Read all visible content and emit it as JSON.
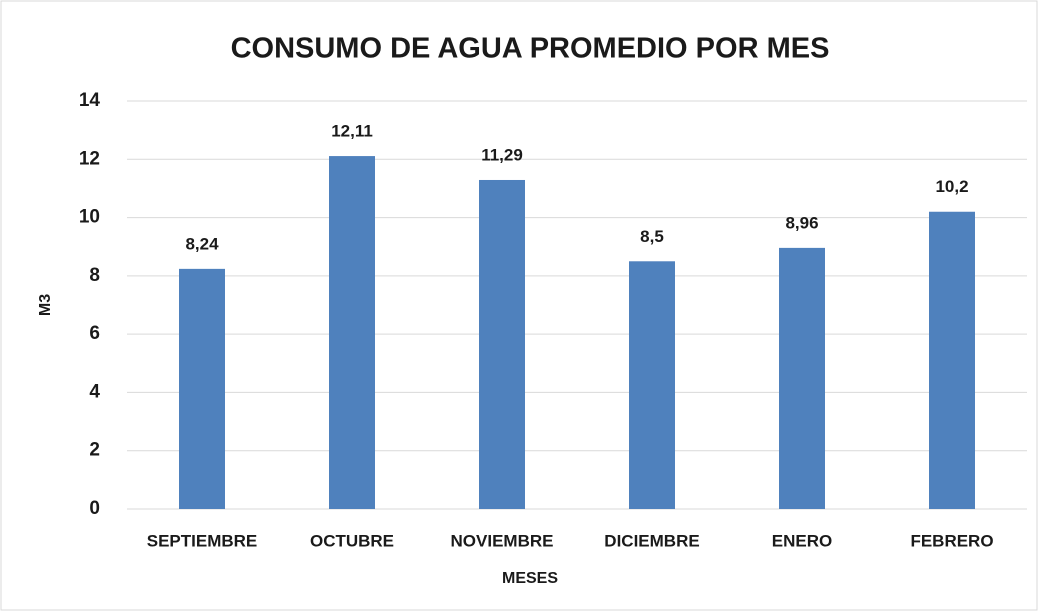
{
  "chart_data": {
    "type": "bar",
    "title": "CONSUMO DE AGUA PROMEDIO POR MES",
    "x_label": "MESES",
    "y_label": "M3",
    "categories": [
      "SEPTIEMBRE",
      "OCTUBRE",
      "NOVIEMBRE",
      "DICIEMBRE",
      "ENERO",
      "FEBRERO"
    ],
    "values": [
      8.24,
      12.11,
      11.29,
      8.5,
      8.96,
      10.2
    ],
    "value_labels": [
      "8,24",
      "12,11",
      "11,29",
      "8,5",
      "8,96",
      "10,2"
    ],
    "color": "#4f81bd",
    "ylim": [
      0,
      14
    ],
    "yticks": [
      0,
      2,
      4,
      6,
      8,
      10,
      12,
      14
    ],
    "grid": true
  }
}
